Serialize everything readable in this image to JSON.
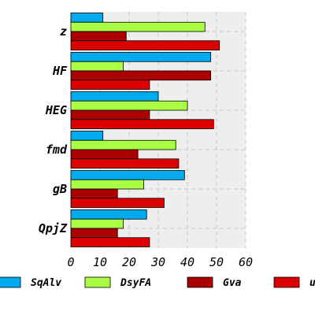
{
  "chart_data": {
    "type": "bar",
    "orientation": "horizontal",
    "categories": [
      "z",
      "HF",
      "HEG",
      "fmd",
      "gB",
      "QpjZ"
    ],
    "series": [
      {
        "name": "SqAlv",
        "color": "#00aaee",
        "values": [
          11,
          48,
          30,
          11,
          39,
          26
        ]
      },
      {
        "name": "DsyFA",
        "color": "#aaff44",
        "values": [
          46,
          18,
          40,
          36,
          25,
          18
        ]
      },
      {
        "name": "Gva",
        "color": "#aa0000",
        "values": [
          19,
          48,
          27,
          23,
          16,
          16
        ]
      },
      {
        "name": "u",
        "color": "#dd0000",
        "values": [
          51,
          27,
          49,
          37,
          32,
          27
        ]
      }
    ],
    "xlim": [
      0,
      60
    ],
    "xticks": [
      "0",
      "10",
      "20",
      "30",
      "40",
      "50",
      "60"
    ],
    "grid": true,
    "legend_position": "bottom",
    "plot_background": "#eeeeee"
  }
}
